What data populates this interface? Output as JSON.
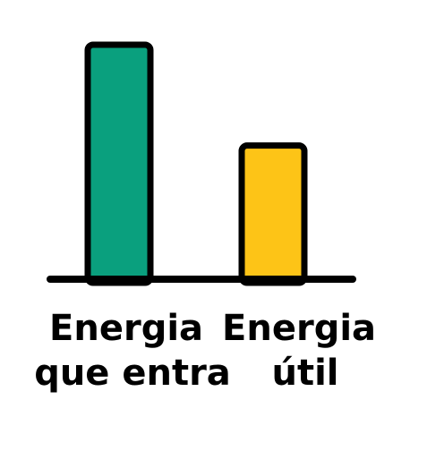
{
  "chart_data": {
    "type": "bar",
    "categories": [
      [
        "Energia",
        "que entra"
      ],
      [
        "Energia",
        "útil"
      ]
    ],
    "values": [
      100,
      57
    ],
    "ylim": [
      0,
      100
    ],
    "colors": [
      "#0aa07e",
      "#fdc417"
    ],
    "grid": false,
    "legend": "none"
  }
}
